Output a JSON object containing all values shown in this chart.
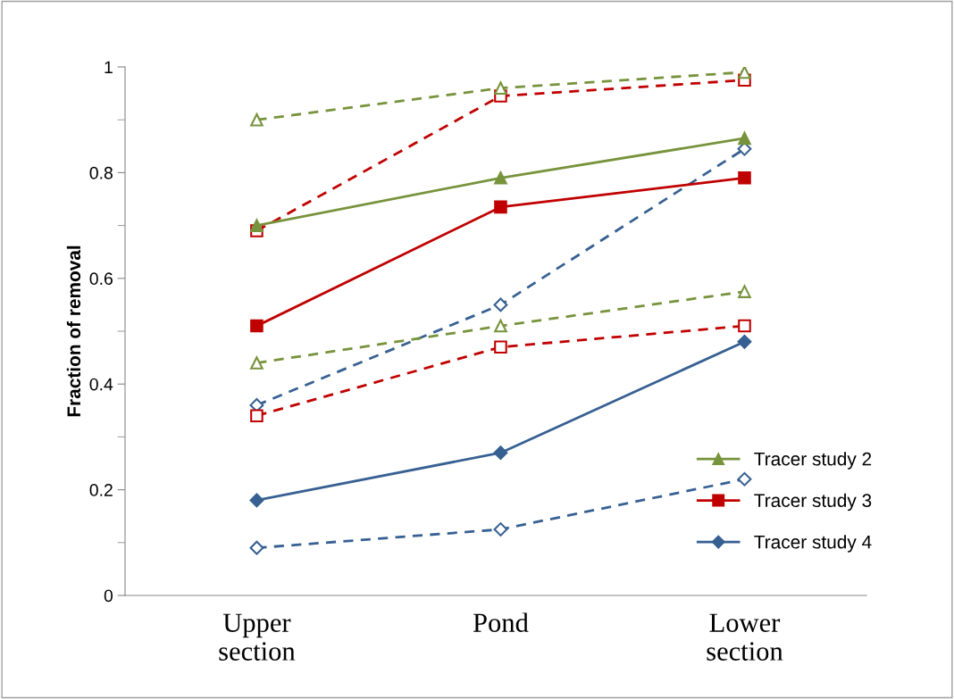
{
  "chart_data": {
    "type": "line",
    "ylabel": "Fraction of removal",
    "categories": [
      "Upper\nsection",
      "Pond",
      "Lower\nsection"
    ],
    "ylim": [
      0,
      1
    ],
    "yticks": [
      0,
      0.2,
      0.4,
      0.6,
      0.8,
      1
    ],
    "grid": false,
    "legend": "bottom right",
    "series": [
      {
        "name": "Tracer study 2",
        "color": "#77933c",
        "marker": "triangle",
        "line_style": "solid",
        "values": [
          0.7,
          0.79,
          0.865
        ]
      },
      {
        "name": "Tracer study 3",
        "color": "#c00000",
        "marker": "square",
        "line_style": "solid",
        "values": [
          0.51,
          0.735,
          0.79
        ]
      },
      {
        "name": "Tracer study 4",
        "color": "#376092",
        "marker": "diamond",
        "line_style": "solid",
        "values": [
          0.18,
          0.27,
          0.48
        ]
      },
      {
        "color": "#77933c",
        "marker": "triangle",
        "line_style": "dashed",
        "values": [
          0.9,
          0.96,
          0.99
        ]
      },
      {
        "color": "#77933c",
        "marker": "triangle",
        "line_style": "dashed",
        "values": [
          0.44,
          0.51,
          0.575
        ]
      },
      {
        "color": "#c00000",
        "marker": "square",
        "line_style": "dashed",
        "values": [
          0.69,
          0.945,
          0.975
        ]
      },
      {
        "color": "#c00000",
        "marker": "square",
        "line_style": "dashed",
        "values": [
          0.34,
          0.47,
          0.51
        ]
      },
      {
        "color": "#376092",
        "marker": "diamond",
        "line_style": "dashed",
        "values": [
          0.36,
          0.55,
          0.845
        ]
      },
      {
        "color": "#376092",
        "marker": "diamond",
        "line_style": "dashed",
        "values": [
          0.09,
          0.125,
          0.22
        ]
      }
    ]
  }
}
